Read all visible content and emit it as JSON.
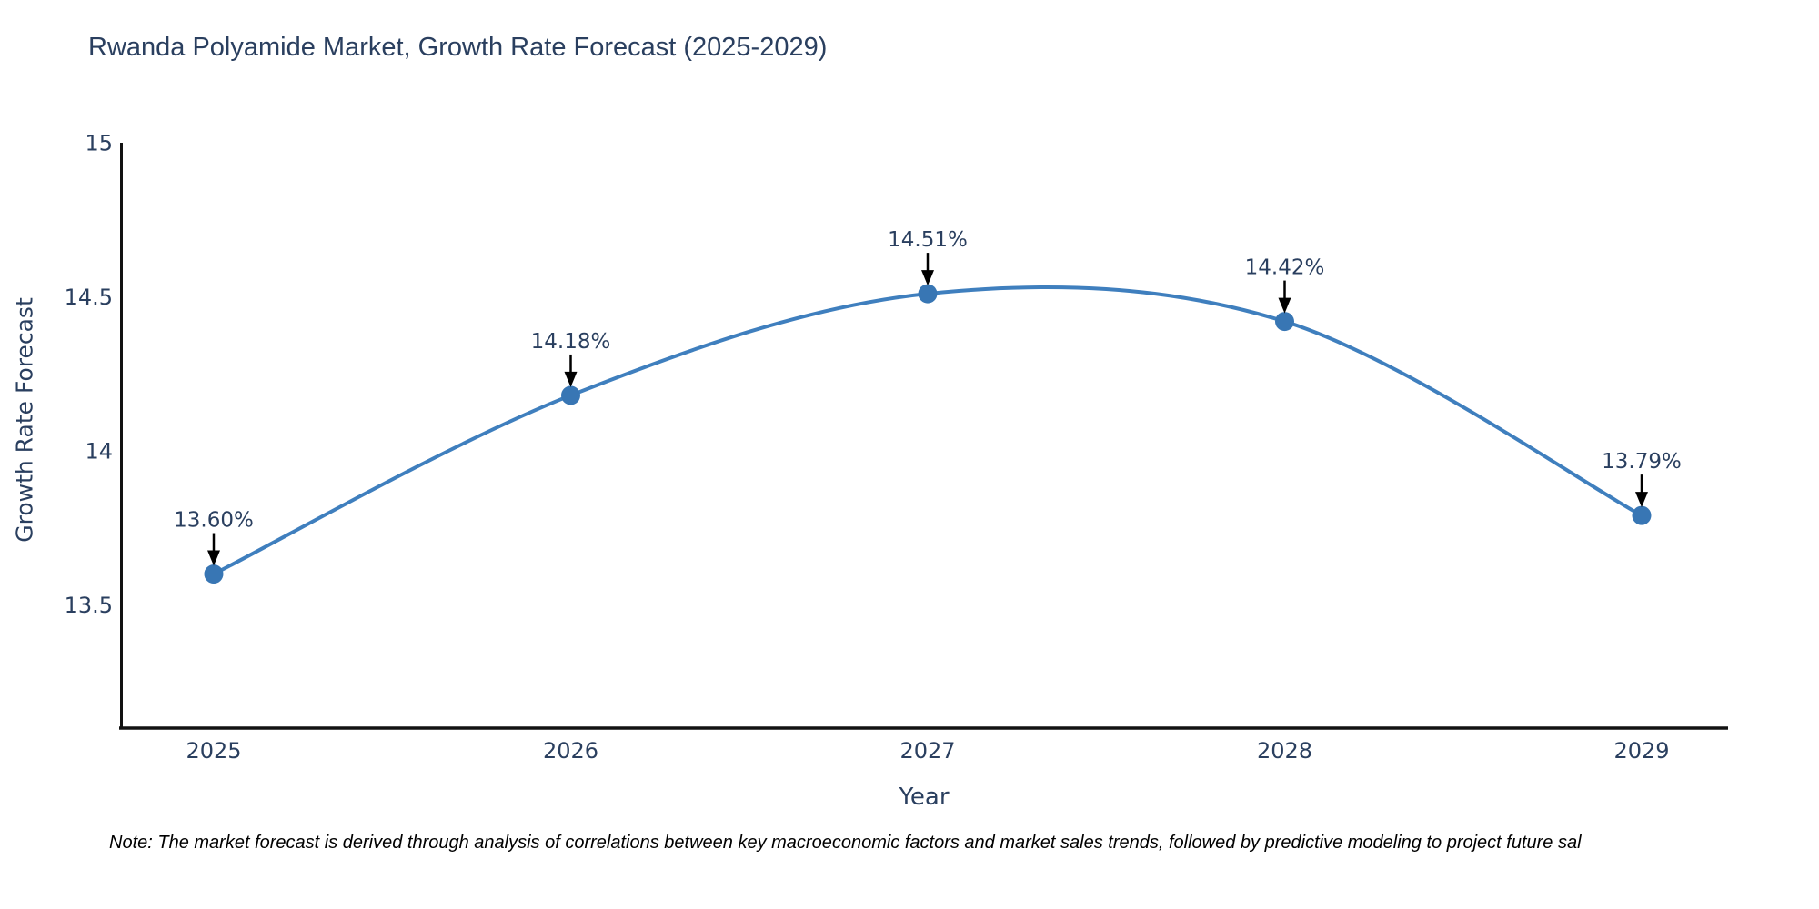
{
  "title": "Rwanda Polyamide Market, Growth Rate Forecast (2025-2029)",
  "note": "Note: The market forecast is derived through analysis of correlations between key macroeconomic factors and market sales trends, followed by predictive modeling to project future sal",
  "chart_data": {
    "type": "line",
    "title": "Rwanda Polyamide Market, Growth Rate Forecast (2025-2029)",
    "xlabel": "Year",
    "ylabel": "Growth Rate Forecast",
    "x": [
      "2025",
      "2026",
      "2027",
      "2028",
      "2029"
    ],
    "series": [
      {
        "name": "Growth Rate Forecast",
        "values": [
          13.6,
          14.18,
          14.51,
          14.42,
          13.79
        ]
      }
    ],
    "point_labels": [
      "13.60%",
      "14.18%",
      "14.51%",
      "14.42%",
      "13.79%"
    ],
    "line_shape": "spline",
    "grid": false,
    "legend_position": "none",
    "ylim": [
      13.1,
      15.0
    ],
    "yticks": [
      13.5,
      14.0,
      14.5,
      15.0
    ],
    "ytick_labels": [
      "13.5",
      "14",
      "14.5",
      "15"
    ],
    "colors": {
      "line": "#3f7fbe",
      "marker": "#3876b4",
      "axis": "#121212",
      "text": "#2a3f5f",
      "annotation_arrow": "#000000"
    }
  }
}
